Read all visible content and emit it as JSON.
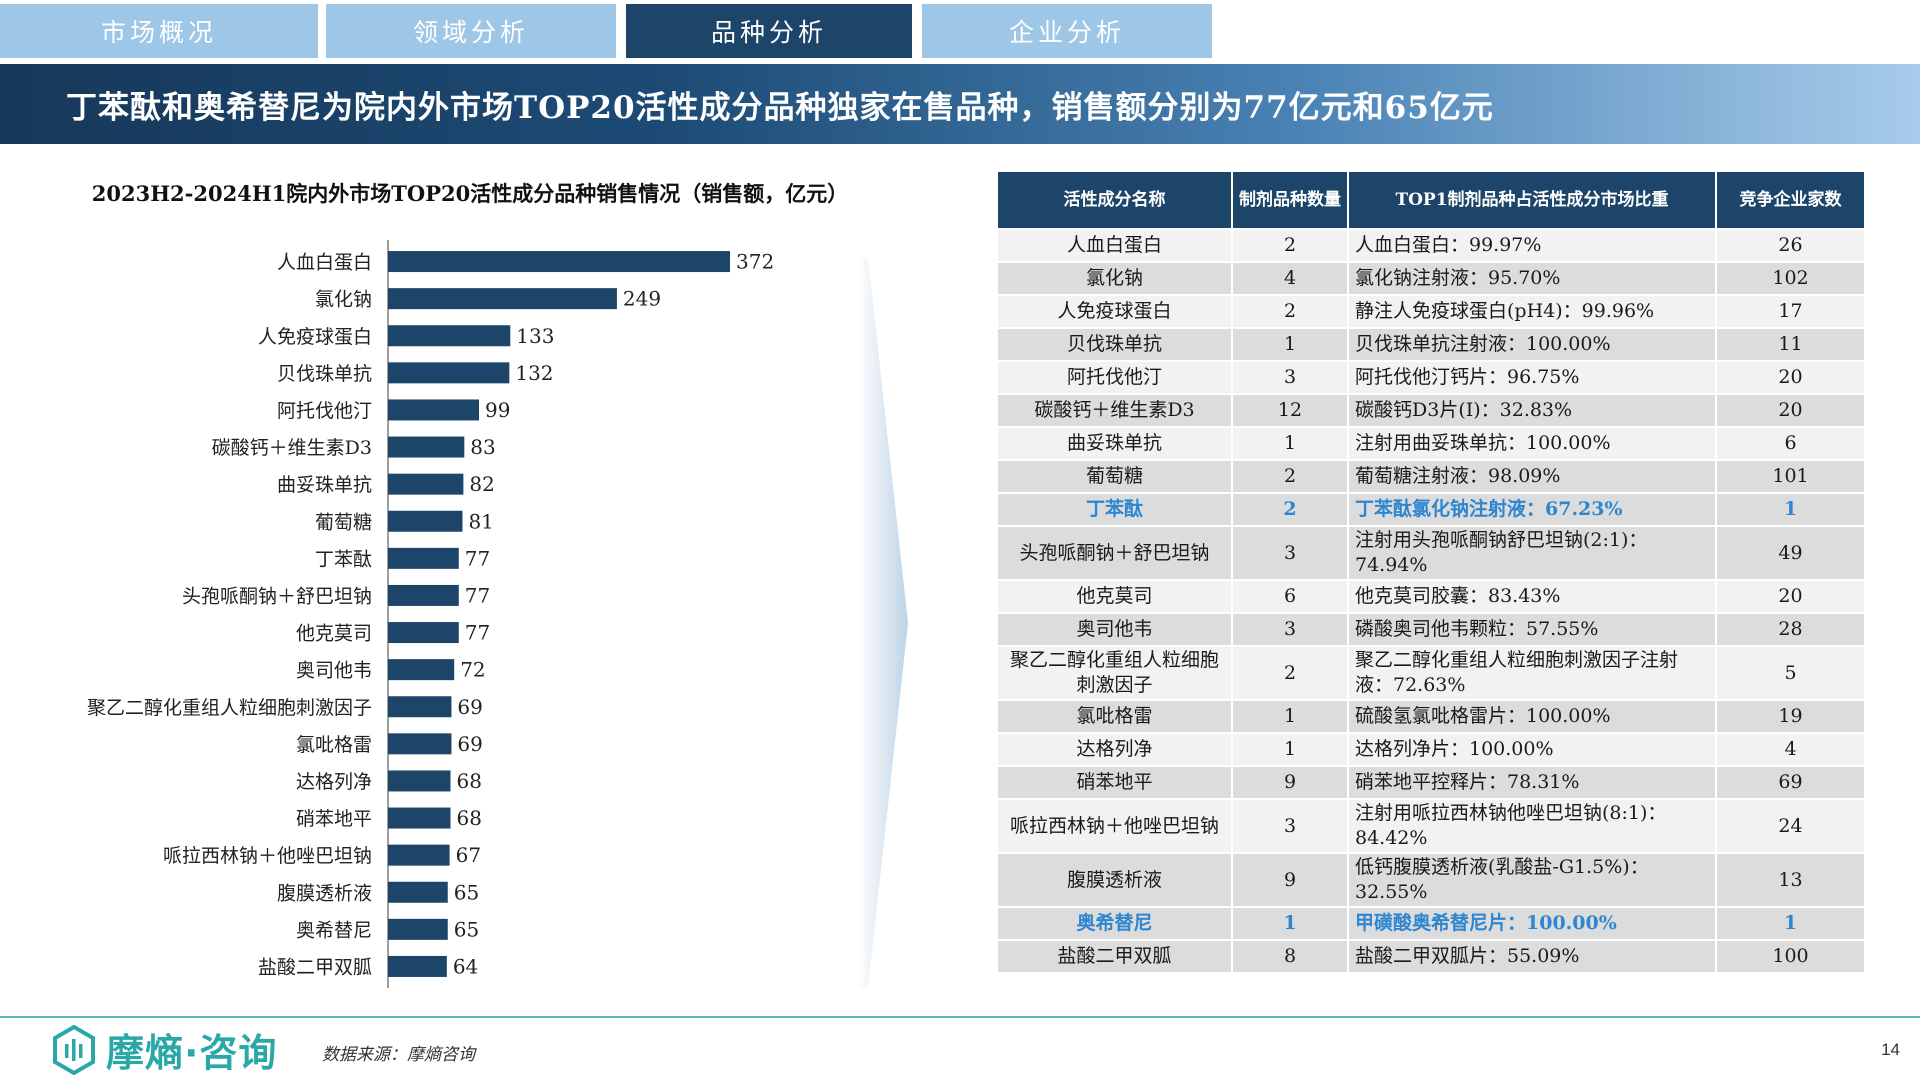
{
  "tabs": [
    {
      "label": "市场概况",
      "active": false
    },
    {
      "label": "领域分析",
      "active": false
    },
    {
      "label": "品种分析",
      "active": true
    },
    {
      "label": "企业分析",
      "active": false
    }
  ],
  "headline": "丁苯酞和奥希替尼为院内外市场TOP20活性成分品种独家在售品种，销售额分别为77亿元和65亿元",
  "colors": {
    "bar": "#1d4569",
    "header": "#1d4569",
    "highlight_text": "#2e86d1",
    "tab_inactive": "#9ec6e6",
    "tab_active": "#1d4569",
    "brand": "#2aa8a8"
  },
  "chart_data": {
    "type": "bar",
    "orientation": "horizontal",
    "title": "2023H2-2024H1院内外市场TOP20活性成分品种销售情况（销售额，亿元）",
    "categories": [
      "人血白蛋白",
      "氯化钠",
      "人免疫球蛋白",
      "贝伐珠单抗",
      "阿托伐他汀",
      "碳酸钙＋维生素D3",
      "曲妥珠单抗",
      "葡萄糖",
      "丁苯酞",
      "头孢哌酮钠＋舒巴坦钠",
      "他克莫司",
      "奥司他韦",
      "聚乙二醇化重组人粒细胞刺激因子",
      "氯吡格雷",
      "达格列净",
      "硝苯地平",
      "哌拉西林钠＋他唑巴坦钠",
      "腹膜透析液",
      "奥希替尼",
      "盐酸二甲双胍"
    ],
    "values": [
      372,
      249,
      133,
      132,
      99,
      83,
      82,
      81,
      77,
      77,
      77,
      72,
      69,
      69,
      68,
      68,
      67,
      65,
      65,
      64
    ],
    "data_labels": true,
    "xlim": [
      0,
      372
    ],
    "grid": false,
    "legend": "none"
  },
  "table": {
    "headers": [
      "活性成分名称",
      "制剂品种数量",
      "TOP1制剂品种占活性成分市场比重",
      "竞争企业家数"
    ],
    "rows": [
      {
        "name": "人血白蛋白",
        "count": "2",
        "share": "人血白蛋白：99.97%",
        "companies": "26",
        "highlight": false
      },
      {
        "name": "氯化钠",
        "count": "4",
        "share": "氯化钠注射液：95.70%",
        "companies": "102",
        "highlight": false
      },
      {
        "name": "人免疫球蛋白",
        "count": "2",
        "share": "静注人免疫球蛋白(pH4)：99.96%",
        "companies": "17",
        "highlight": false
      },
      {
        "name": "贝伐珠单抗",
        "count": "1",
        "share": "贝伐珠单抗注射液：100.00%",
        "companies": "11",
        "highlight": false
      },
      {
        "name": "阿托伐他汀",
        "count": "3",
        "share": "阿托伐他汀钙片：96.75%",
        "companies": "20",
        "highlight": false
      },
      {
        "name": "碳酸钙＋维生素D3",
        "count": "12",
        "share": "碳酸钙D3片(I)：32.83%",
        "companies": "20",
        "highlight": false
      },
      {
        "name": "曲妥珠单抗",
        "count": "1",
        "share": "注射用曲妥珠单抗：100.00%",
        "companies": "6",
        "highlight": false
      },
      {
        "name": "葡萄糖",
        "count": "2",
        "share": "葡萄糖注射液：98.09%",
        "companies": "101",
        "highlight": false
      },
      {
        "name": "丁苯酞",
        "count": "2",
        "share": "丁苯酞氯化钠注射液：67.23%",
        "companies": "1",
        "highlight": true
      },
      {
        "name": "头孢哌酮钠＋舒巴坦钠",
        "count": "3",
        "share": "注射用头孢哌酮钠舒巴坦钠(2:1)：74.94%",
        "companies": "49",
        "highlight": false
      },
      {
        "name": "他克莫司",
        "count": "6",
        "share": "他克莫司胶囊：83.43%",
        "companies": "20",
        "highlight": false
      },
      {
        "name": "奥司他韦",
        "count": "3",
        "share": "磷酸奥司他韦颗粒：57.55%",
        "companies": "28",
        "highlight": false
      },
      {
        "name": "聚乙二醇化重组人粒细胞刺激因子",
        "count": "2",
        "share": "聚乙二醇化重组人粒细胞刺激因子注射液：72.63%",
        "companies": "5",
        "highlight": false
      },
      {
        "name": "氯吡格雷",
        "count": "1",
        "share": "硫酸氢氯吡格雷片：100.00%",
        "companies": "19",
        "highlight": false
      },
      {
        "name": "达格列净",
        "count": "1",
        "share": "达格列净片：100.00%",
        "companies": "4",
        "highlight": false
      },
      {
        "name": "硝苯地平",
        "count": "9",
        "share": "硝苯地平控释片：78.31%",
        "companies": "69",
        "highlight": false
      },
      {
        "name": "哌拉西林钠＋他唑巴坦钠",
        "count": "3",
        "share": "注射用哌拉西林钠他唑巴坦钠(8:1)：84.42%",
        "companies": "24",
        "highlight": false
      },
      {
        "name": "腹膜透析液",
        "count": "9",
        "share": "低钙腹膜透析液(乳酸盐-G1.5%)：32.55%",
        "companies": "13",
        "highlight": false
      },
      {
        "name": "奥希替尼",
        "count": "1",
        "share": "甲磺酸奥希替尼片：100.00%",
        "companies": "1",
        "highlight": true
      },
      {
        "name": "盐酸二甲双胍",
        "count": "8",
        "share": "盐酸二甲双胍片：55.09%",
        "companies": "100",
        "highlight": false
      }
    ]
  },
  "footer": {
    "brand": "摩熵·咨询",
    "source": "数据来源：摩熵咨询",
    "page": "14"
  }
}
